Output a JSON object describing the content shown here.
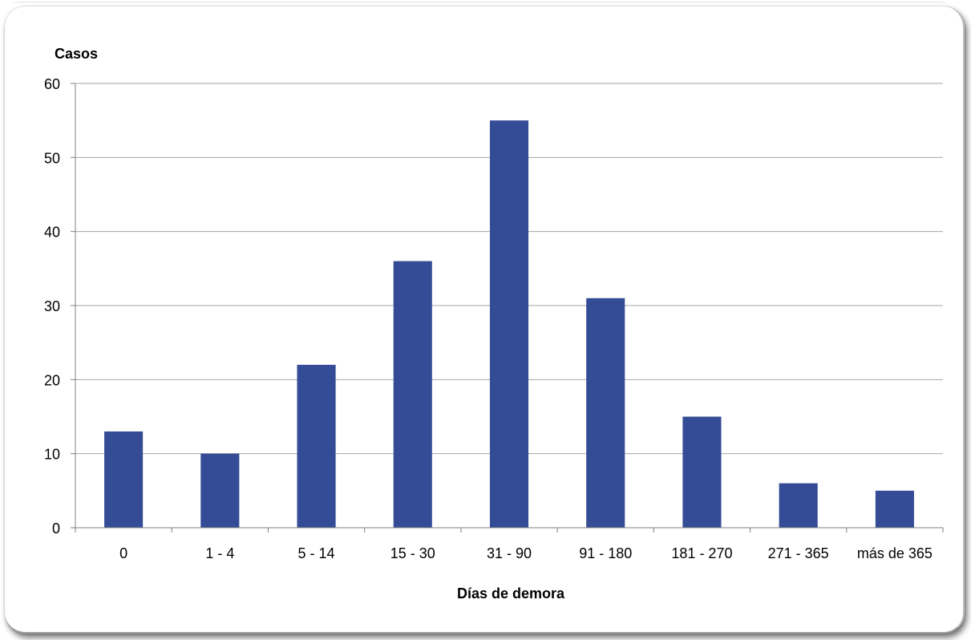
{
  "chart_data": {
    "type": "bar",
    "title": "",
    "ylabel": "Casos",
    "xlabel": "Días de demora",
    "categories": [
      "0",
      "1 - 4",
      "5 - 14",
      "15 - 30",
      "31 - 90",
      "91 - 180",
      "181 - 270",
      "271 - 365",
      "más de 365"
    ],
    "values": [
      13,
      10,
      22,
      36,
      55,
      31,
      15,
      6,
      5
    ],
    "ylim": [
      0,
      60
    ],
    "yticks": [
      0,
      10,
      20,
      30,
      40,
      50,
      60
    ],
    "grid": true,
    "legend": "none",
    "bar_color": "#344b95",
    "grid_color": "#a6a6a6"
  }
}
